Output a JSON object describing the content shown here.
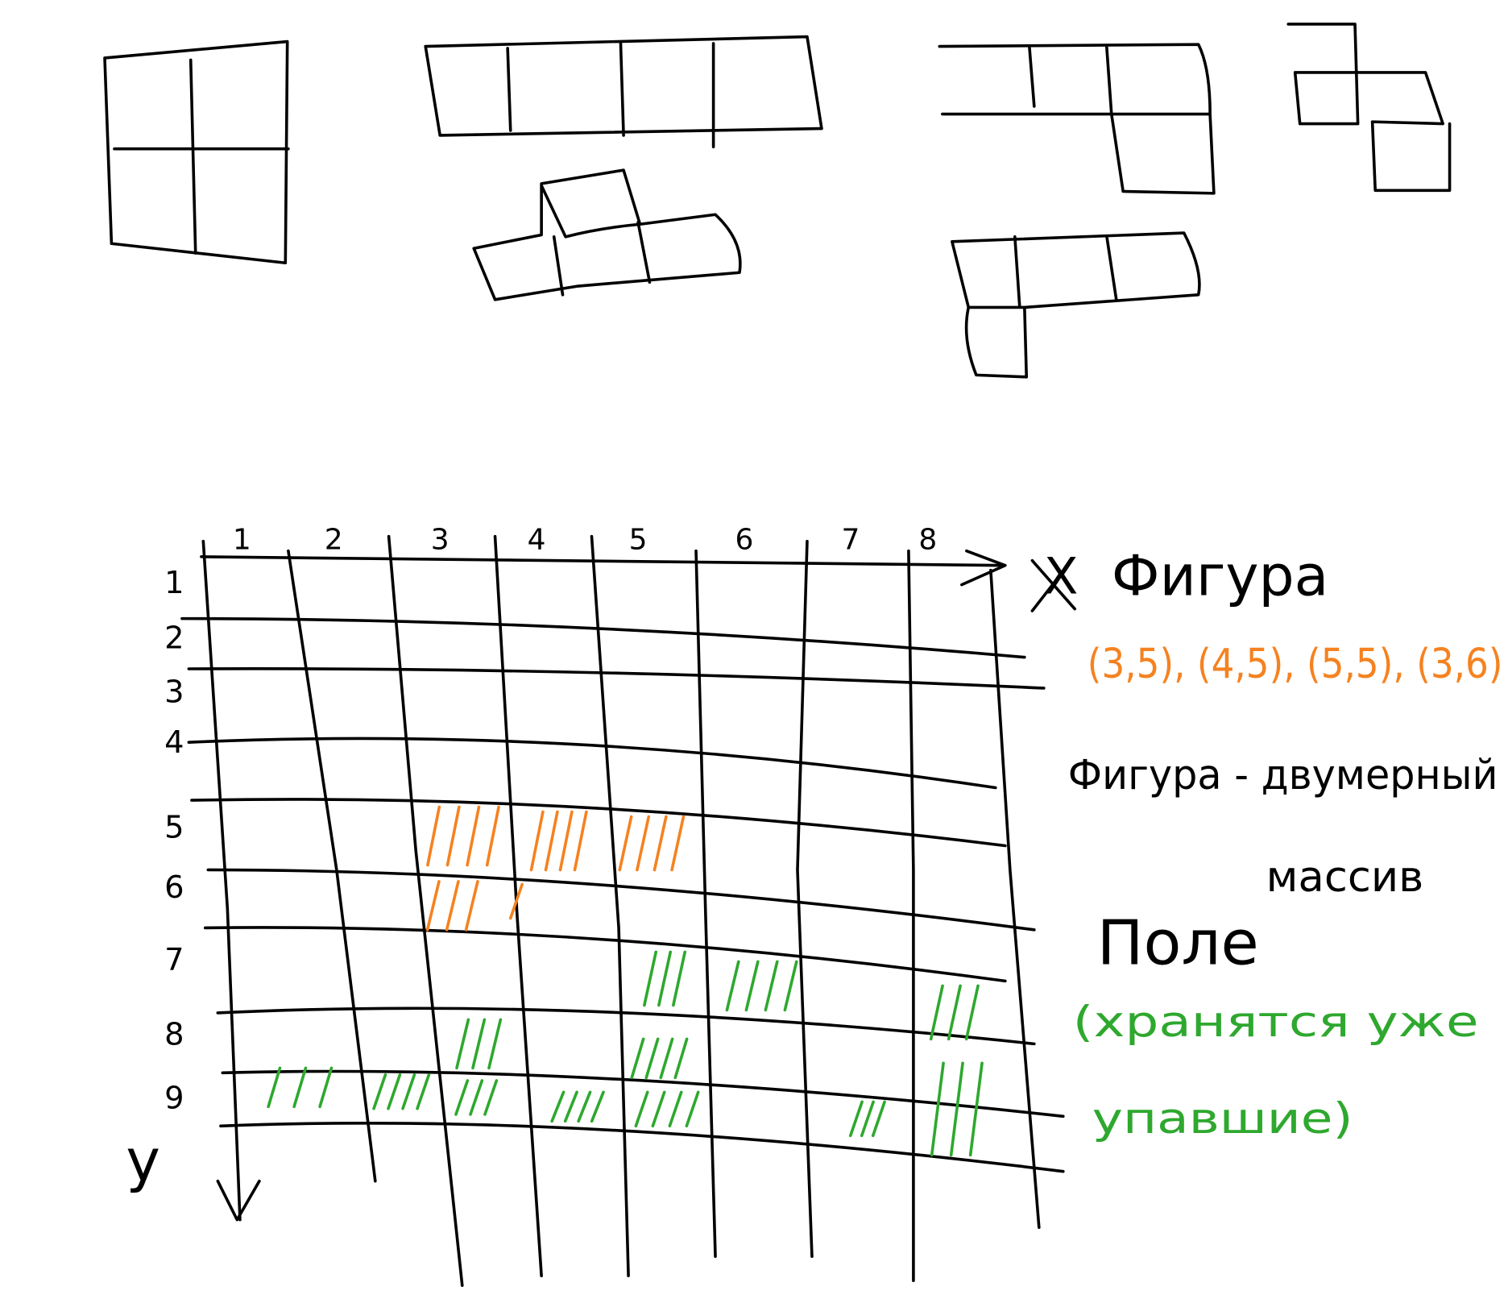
{
  "header": {
    "pieces_caption": "Фигура"
  },
  "grid": {
    "x_axis": "X",
    "y_axis": "y",
    "columns": [
      "1",
      "2",
      "3",
      "4",
      "5",
      "6",
      "7",
      "8"
    ],
    "rows": [
      "1",
      "2",
      "3",
      "4",
      "5",
      "6",
      "7",
      "8",
      "9"
    ]
  },
  "notes": {
    "figure_cells": "(3,5), (4,5), (5,5), (3,6)",
    "figure_line1": "Фигура - двумерный",
    "figure_line2": "массив",
    "field_title": "Поле",
    "field_line1": "(хранятся уже",
    "field_line2": "упавшие)"
  }
}
